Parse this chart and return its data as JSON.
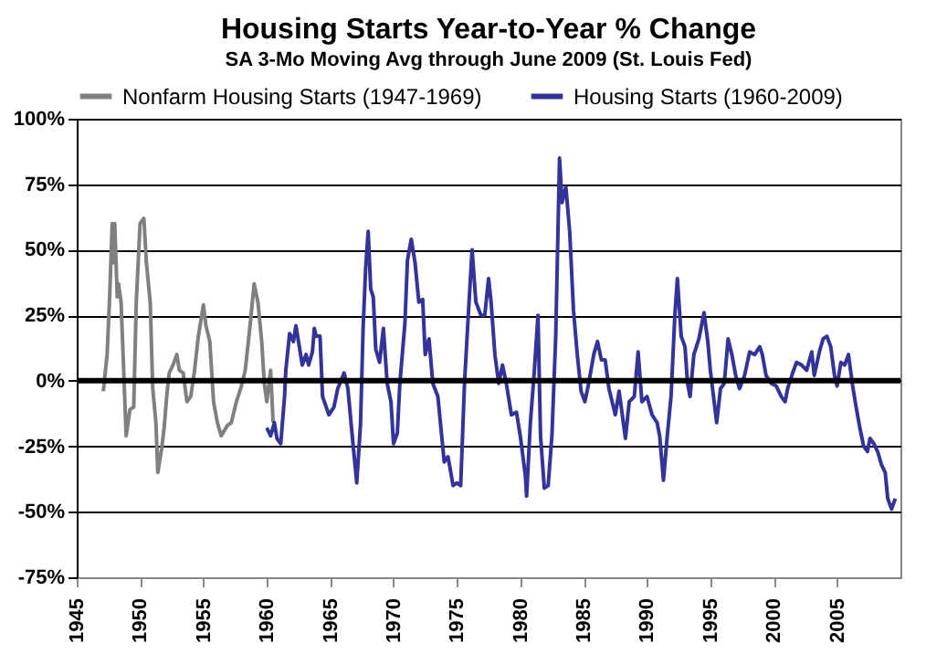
{
  "chart_data": {
    "type": "line",
    "title": "Housing Starts Year-to-Year % Change",
    "subtitle": "SA 3-Mo Moving Avg through June 2009 (St. Louis Fed)",
    "xlim": [
      1945,
      2010
    ],
    "xticks": [
      1945,
      1950,
      1955,
      1960,
      1965,
      1970,
      1975,
      1980,
      1985,
      1990,
      1995,
      2000,
      2005
    ],
    "ylim": [
      -75,
      100
    ],
    "yticks": [
      {
        "value": -75,
        "label": "-75%"
      },
      {
        "value": -50,
        "label": "-50%"
      },
      {
        "value": -25,
        "label": "-25%"
      },
      {
        "value": 0,
        "label": "0%"
      },
      {
        "value": 25,
        "label": "25%"
      },
      {
        "value": 50,
        "label": "50%"
      },
      {
        "value": 75,
        "label": "75%"
      },
      {
        "value": 100,
        "label": "100%"
      }
    ],
    "grid": "y",
    "legend": "top",
    "marker": "none",
    "line_style": "solid",
    "ref_lines": [
      {
        "axis": "y",
        "value": 0,
        "label": null,
        "color": "#000000"
      }
    ],
    "series": [
      {
        "name": "Nonfarm Housing Starts (1947-1969)",
        "color": "#808080",
        "x": [
          1947.1,
          1947.4,
          1947.6,
          1947.8,
          1947.9,
          1948.0,
          1948.2,
          1948.3,
          1948.5,
          1948.7,
          1948.9,
          1949.2,
          1949.5,
          1949.7,
          1950.0,
          1950.3,
          1950.5,
          1950.8,
          1951.0,
          1951.25,
          1951.4,
          1951.7,
          1951.9,
          1952.1,
          1952.3,
          1952.6,
          1952.9,
          1953.1,
          1953.4,
          1953.7,
          1954.0,
          1954.3,
          1954.6,
          1955.0,
          1955.2,
          1955.5,
          1955.8,
          1956.1,
          1956.4,
          1956.9,
          1957.2,
          1957.6,
          1958.0,
          1958.3,
          1958.7,
          1959.0,
          1959.3,
          1959.6,
          1959.8,
          1960.0,
          1960.3,
          1960.5
        ],
        "values": [
          -4,
          10,
          32,
          60,
          45,
          60,
          32,
          37,
          30,
          5,
          -21,
          -11,
          -10,
          30,
          60,
          62,
          45,
          30,
          -3,
          -16,
          -35,
          -26,
          -18,
          -6,
          3,
          6,
          10,
          4,
          3,
          -8,
          -6,
          4,
          17,
          29,
          21,
          15,
          -8,
          -16,
          -21,
          -17,
          -16,
          -8,
          -2,
          4,
          22,
          37,
          30,
          15,
          -1,
          -8,
          4,
          -16
        ]
      },
      {
        "name": "Housing Starts (1960-2009)",
        "color": "#333399",
        "x": [
          1960.0,
          1960.3,
          1960.6,
          1960.8,
          1961.1,
          1961.4,
          1961.5,
          1961.8,
          1962.1,
          1962.3,
          1962.6,
          1962.8,
          1963.1,
          1963.3,
          1963.6,
          1963.75,
          1963.9,
          1964.2,
          1964.4,
          1964.9,
          1965.3,
          1965.6,
          1966.1,
          1966.4,
          1966.8,
          1967.1,
          1967.4,
          1967.6,
          1967.8,
          1968.0,
          1968.2,
          1968.4,
          1968.6,
          1968.9,
          1969.2,
          1969.5,
          1969.8,
          1970.0,
          1970.3,
          1970.5,
          1970.9,
          1971.1,
          1971.4,
          1971.7,
          1972.0,
          1972.3,
          1972.5,
          1972.8,
          1973.1,
          1973.5,
          1974.0,
          1974.3,
          1974.7,
          1975.0,
          1975.3,
          1975.6,
          1975.9,
          1976.2,
          1976.5,
          1976.9,
          1977.2,
          1977.5,
          1977.7,
          1978.0,
          1978.3,
          1978.6,
          1978.9,
          1979.3,
          1979.7,
          1980.0,
          1980.4,
          1980.5,
          1980.8,
          1981.1,
          1981.4,
          1981.6,
          1981.9,
          1982.2,
          1982.5,
          1982.8,
          1983.1,
          1983.3,
          1983.6,
          1983.9,
          1984.2,
          1984.5,
          1984.8,
          1985.1,
          1985.4,
          1985.8,
          1986.1,
          1986.4,
          1986.7,
          1987.0,
          1987.5,
          1987.8,
          1988.3,
          1988.6,
          1989.0,
          1989.3,
          1989.6,
          1990.0,
          1990.4,
          1990.8,
          1991.0,
          1991.3,
          1991.6,
          1991.9,
          1992.2,
          1992.4,
          1992.7,
          1993.0,
          1993.2,
          1993.4,
          1993.7,
          1994.1,
          1994.5,
          1994.8,
          1995.0,
          1995.3,
          1995.5,
          1995.8,
          1996.1,
          1996.4,
          1996.7,
          1997.0,
          1997.3,
          1997.7,
          1998.1,
          1998.5,
          1998.9,
          1999.1,
          1999.4,
          1999.8,
          2000.2,
          2000.6,
          2000.9,
          2001.1,
          2001.5,
          2001.8,
          2002.2,
          2002.6,
          2003.0,
          2003.2,
          2003.6,
          2003.9,
          2004.2,
          2004.5,
          2004.8,
          2005.0,
          2005.3,
          2005.6,
          2005.9,
          2006.2,
          2006.5,
          2006.8,
          2007.1,
          2007.4,
          2007.6,
          2007.9,
          2008.2,
          2008.5,
          2008.8,
          2009.0,
          2009.3,
          2009.6
        ],
        "values": [
          -18,
          -21,
          -16,
          -22,
          -24,
          -6,
          4,
          18,
          15,
          21,
          12,
          6,
          10,
          6,
          11,
          20,
          17,
          17,
          -6,
          -13,
          -10,
          -3,
          3,
          -3,
          -24,
          -39,
          -16,
          20,
          43,
          57,
          35,
          32,
          12,
          7,
          20,
          -1,
          -8,
          -24,
          -20,
          -1,
          22,
          46,
          54,
          45,
          30,
          31,
          10,
          16,
          -1,
          -6,
          -31,
          -29,
          -40,
          -39,
          -40,
          -1,
          25,
          50,
          30,
          25,
          25,
          39,
          30,
          10,
          -1,
          6,
          -1,
          -13,
          -12,
          -21,
          -36,
          -44,
          -16,
          3,
          25,
          -21,
          -41,
          -40,
          -21,
          17,
          85,
          68,
          74,
          57,
          27,
          10,
          -4,
          -8,
          -1,
          10,
          15,
          8,
          8,
          -3,
          -13,
          -4,
          -22,
          -8,
          -6,
          11,
          -8,
          -6,
          -13,
          -16,
          -21,
          -38,
          -21,
          -6,
          25,
          39,
          17,
          13,
          -1,
          -6,
          10,
          16,
          26,
          15,
          4,
          -8,
          -16,
          -3,
          -1,
          16,
          10,
          2,
          -3,
          2,
          11,
          10,
          13,
          10,
          2,
          -1,
          -2,
          -6,
          -8,
          -3,
          3,
          7,
          6,
          4,
          11,
          2,
          11,
          16,
          17,
          13,
          2,
          -2,
          7,
          6,
          10,
          -1,
          -10,
          -18,
          -25,
          -27,
          -22,
          -24,
          -27,
          -32,
          -35,
          -45,
          -49,
          -45
        ]
      }
    ]
  }
}
